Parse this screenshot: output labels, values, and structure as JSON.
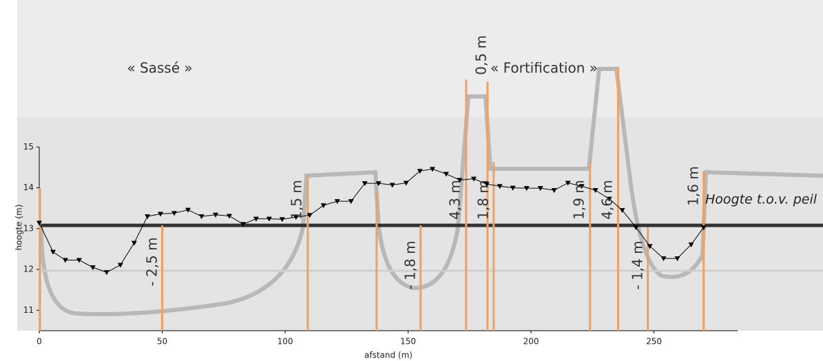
{
  "chart_data": {
    "type": "line",
    "x_label": "afstand (m)",
    "y_label": "hoogte (m)",
    "x": [
      0,
      5.6,
      10.6,
      16.2,
      21.8,
      27.4,
      33,
      38.6,
      44,
      49.3,
      54.9,
      60.5,
      66,
      71.7,
      77.3,
      82.9,
      88.2,
      93.5,
      98.8,
      104.4,
      110,
      115.6,
      121.2,
      126.8,
      132.4,
      138,
      143.6,
      149.2,
      154.8,
      159.9,
      165.5,
      171,
      176.7,
      182,
      187.3,
      192.6,
      198.2,
      203.8,
      209.4,
      215,
      220.6,
      226.2,
      231.8,
      237.1,
      242.7,
      248.3,
      253.9,
      259.5,
      265.1,
      270.2
    ],
    "values": [
      13.14,
      12.43,
      12.23,
      12.23,
      12.05,
      11.93,
      12.11,
      12.65,
      13.3,
      13.36,
      13.38,
      13.46,
      13.3,
      13.34,
      13.31,
      13.11,
      13.24,
      13.24,
      13.23,
      13.28,
      13.33,
      13.57,
      13.67,
      13.67,
      14.11,
      14.11,
      14.07,
      14.12,
      14.41,
      14.46,
      14.34,
      14.19,
      14.22,
      14.09,
      14.04,
      14.0,
      13.99,
      13.99,
      13.94,
      14.12,
      14.04,
      13.94,
      13.73,
      13.45,
      13.03,
      12.57,
      12.27,
      12.27,
      12.61,
      13.03
    ],
    "color": "#000000",
    "verticals": {
      "color": "#f0a060",
      "x": [
        0.3,
        50,
        109.2,
        137.2,
        155.1,
        173.6,
        182.3,
        184.8,
        224,
        235.4,
        247.5,
        270.2
      ],
      "values": [
        13.99,
        13.08,
        14.32,
        13.9,
        13.08,
        16.65,
        16.6,
        14.63,
        14.63,
        16.96,
        13.03,
        14.41
      ]
    },
    "reference_line": {
      "value": 13.08,
      "label": "Hoogte t.o.v. peil",
      "color": "#333333"
    },
    "annotations": [
      "« Sassé »",
      "« Fortification »",
      "- 2,5 m",
      "1,5 m",
      "- 1,8 m",
      "4,3 m",
      "0,5 m",
      "1,8 m",
      "1,9 m",
      "4,6 m",
      "- 1,4 m",
      "1,6 m"
    ],
    "xlim": [
      0,
      284
    ],
    "ylim": [
      10.5,
      18.6
    ],
    "xticks": [
      0,
      50,
      100,
      150,
      200,
      250
    ],
    "yticks": [
      11,
      12,
      13,
      14,
      15
    ]
  }
}
